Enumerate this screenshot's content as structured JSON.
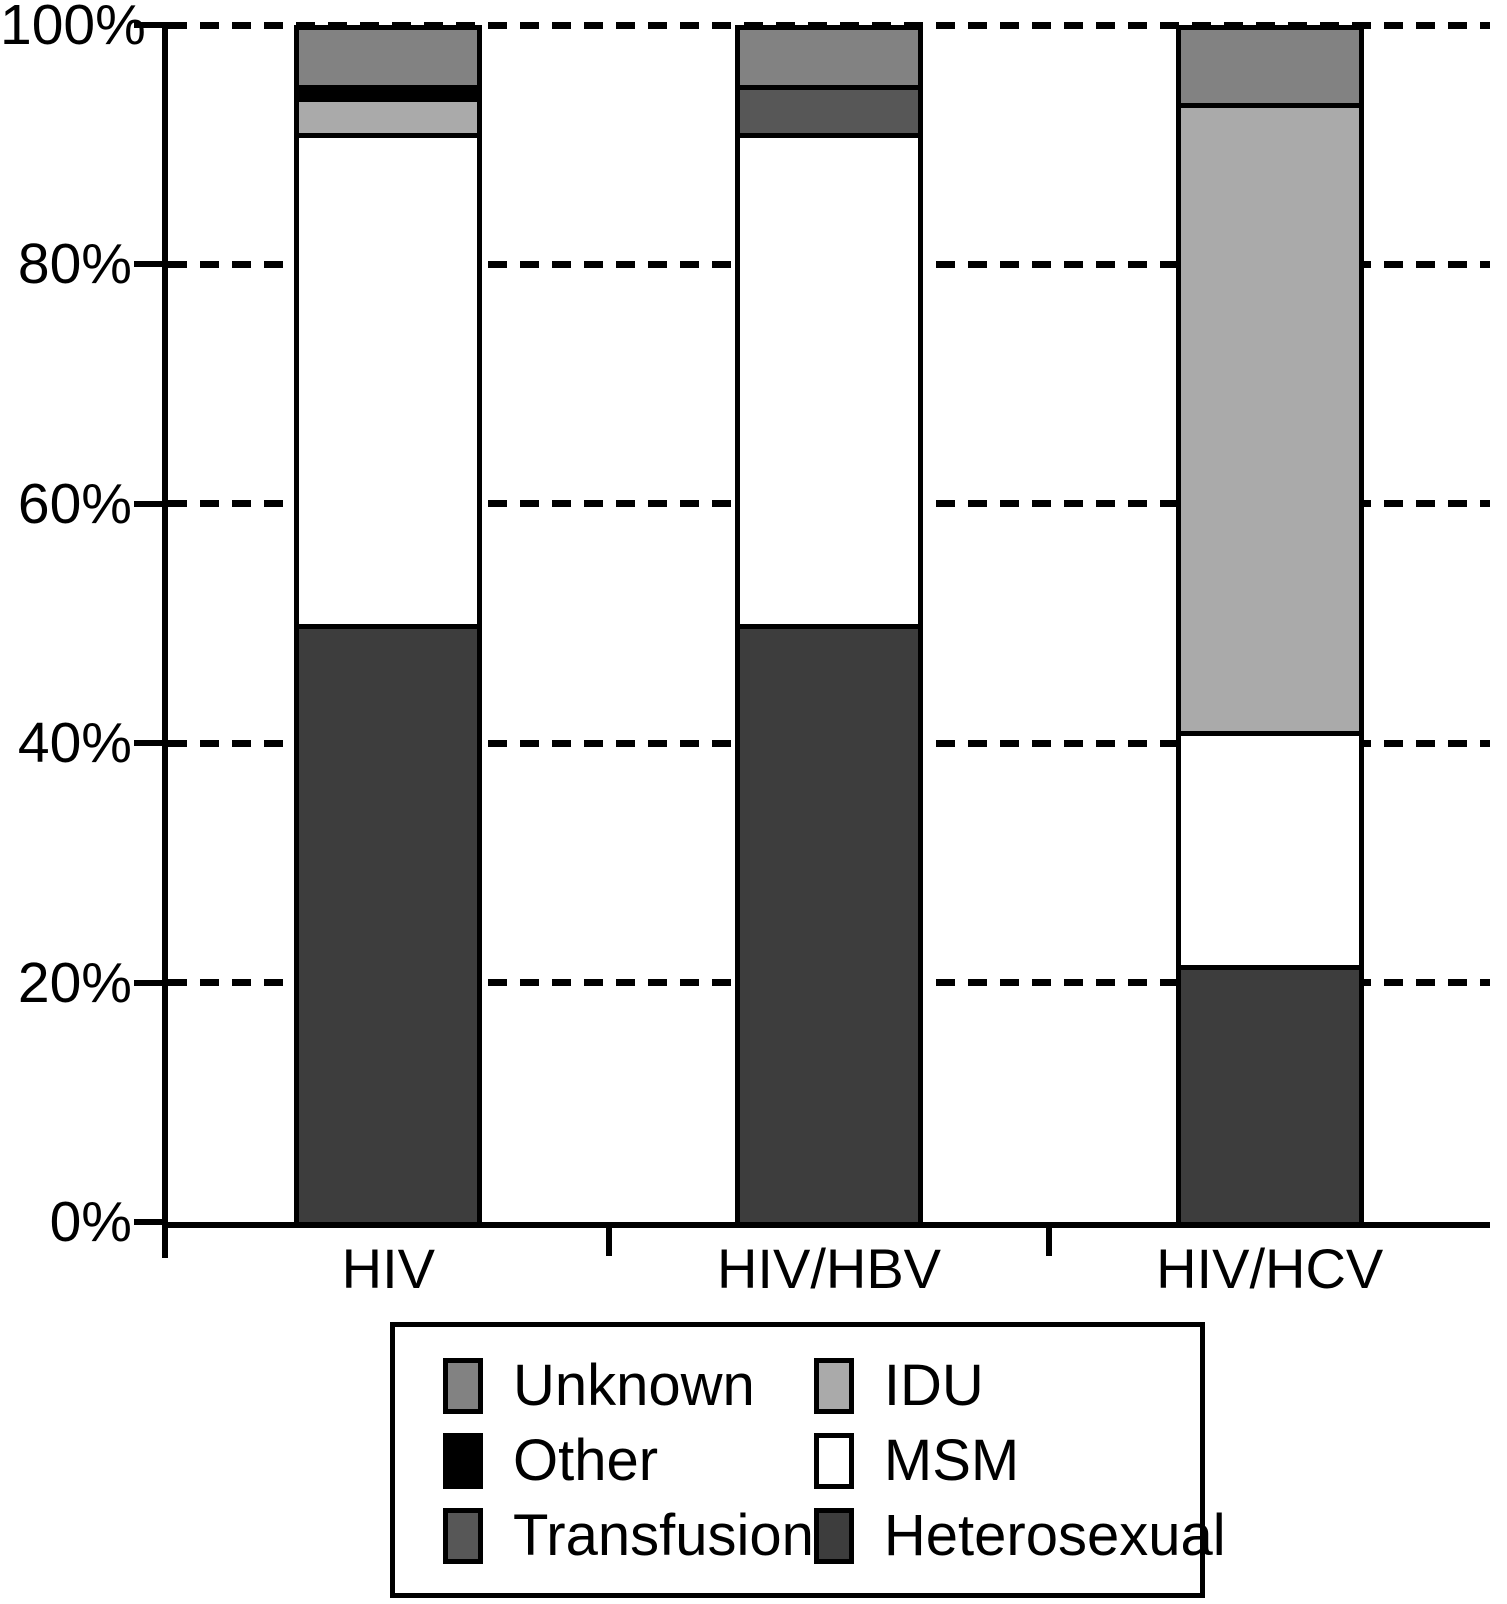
{
  "chart_data": {
    "type": "bar",
    "subtype": "stacked-100-percent",
    "title": "",
    "xlabel": "",
    "ylabel": "",
    "ylim": [
      0,
      100
    ],
    "y_ticks": [
      "0%",
      "20%",
      "40%",
      "60%",
      "80%",
      "100%"
    ],
    "grid": "horizontal dashed lines at 20% intervals",
    "categories": [
      "HIV",
      "HIV/HBV",
      "HIV/HCV"
    ],
    "series": [
      {
        "name": "Heterosexual",
        "color": "#3d3d3d",
        "values": [
          50,
          50,
          21.5
        ]
      },
      {
        "name": "MSM",
        "color": "#ffffff",
        "values": [
          41,
          41,
          19.5
        ]
      },
      {
        "name": "IDU",
        "color": "#aaaaaa",
        "values": [
          3,
          0,
          52.5
        ]
      },
      {
        "name": "Transfusion",
        "color": "#575757",
        "values": [
          0,
          4,
          0
        ]
      },
      {
        "name": "Other",
        "color": "#000000",
        "values": [
          1,
          0,
          0
        ]
      },
      {
        "name": "Unknown",
        "color": "#828282",
        "values": [
          5,
          5,
          6.5
        ]
      }
    ],
    "legend": {
      "position": "below-chart",
      "items": [
        {
          "label": "Unknown",
          "color": "#828282"
        },
        {
          "label": "Other",
          "color": "#000000"
        },
        {
          "label": "Transfusion",
          "color": "#575757"
        },
        {
          "label": "IDU",
          "color": "#aaaaaa"
        },
        {
          "label": "MSM",
          "color": "#ffffff"
        },
        {
          "label": "Heterosexual",
          "color": "#3d3d3d"
        }
      ]
    },
    "axis_color": "#000000",
    "background_color": "#ffffff"
  }
}
